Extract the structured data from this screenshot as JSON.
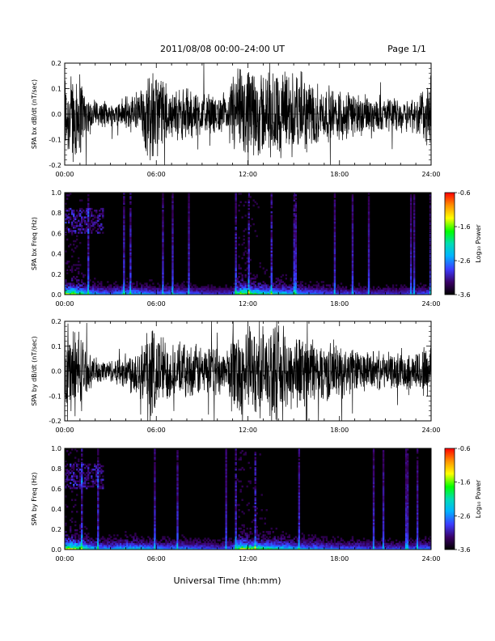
{
  "header": {
    "title": "2011/08/08   00:00–24:00 UT",
    "page": "Page 1/1"
  },
  "chart_data": [
    {
      "type": "line",
      "ylabel": "SPA bx dB/dt (nT/sec)",
      "x_ticks": [
        "00:00",
        "06:00",
        "12:00",
        "18:00",
        "24:00"
      ],
      "xlim_hours": [
        0,
        24
      ],
      "ylim": [
        -0.2,
        0.2
      ],
      "y_ticks": [
        "-0.2",
        "-0.1",
        "0.0",
        "0.1",
        "0.2"
      ],
      "envelope": {
        "hours": [
          0,
          0.5,
          1,
          1.5,
          2,
          3,
          4,
          5,
          5.5,
          6,
          7,
          8,
          9,
          10,
          10.7,
          11,
          11.5,
          12,
          13,
          14,
          15,
          16,
          17,
          18,
          19,
          20,
          21,
          22,
          23,
          24
        ],
        "amplitude": [
          0.2,
          0.2,
          0.2,
          0.08,
          0.06,
          0.05,
          0.08,
          0.12,
          0.2,
          0.2,
          0.1,
          0.12,
          0.1,
          0.08,
          0.08,
          0.2,
          0.2,
          0.2,
          0.2,
          0.2,
          0.2,
          0.16,
          0.12,
          0.12,
          0.1,
          0.08,
          0.07,
          0.07,
          0.08,
          0.18
        ]
      },
      "color": "#000000"
    },
    {
      "type": "heatmap",
      "ylabel": "SPA bx Freq (Hz)",
      "x_ticks": [
        "00:00",
        "06:00",
        "12:00",
        "18:00",
        "24:00"
      ],
      "xlim_hours": [
        0,
        24
      ],
      "ylim": [
        0.0,
        1.0
      ],
      "y_ticks": [
        "0.0",
        "0.2",
        "0.4",
        "0.6",
        "0.8",
        "1.0"
      ],
      "colorbar": {
        "label": "Log₁₀ Power",
        "ticks": [
          "-0.6",
          "-1.6",
          "-2.6",
          "-3.6"
        ],
        "range": [
          -3.6,
          -0.6
        ]
      },
      "activity": {
        "hours": [
          0,
          0.5,
          1,
          1.5,
          2,
          3,
          4,
          5,
          6,
          7,
          8,
          9,
          10,
          11,
          11.5,
          12,
          13,
          14,
          15,
          16,
          17,
          18,
          19,
          20,
          21,
          22,
          23,
          24
        ],
        "level": [
          1.0,
          0.9,
          0.8,
          0.6,
          0.5,
          0.4,
          0.55,
          0.5,
          0.4,
          0.45,
          0.4,
          0.35,
          0.3,
          0.35,
          0.95,
          0.85,
          0.7,
          0.65,
          0.55,
          0.45,
          0.4,
          0.35,
          0.35,
          0.3,
          0.3,
          0.3,
          0.35,
          0.4
        ]
      }
    },
    {
      "type": "line",
      "ylabel": "SPA by dB/dt (nT/sec)",
      "x_ticks": [
        "00:00",
        "06:00",
        "12:00",
        "18:00",
        "24:00"
      ],
      "xlim_hours": [
        0,
        24
      ],
      "ylim": [
        -0.2,
        0.2
      ],
      "y_ticks": [
        "-0.2",
        "-0.1",
        "0.0",
        "0.1",
        "0.2"
      ],
      "envelope": {
        "hours": [
          0,
          0.5,
          1,
          1.5,
          2,
          3,
          4,
          5,
          5.5,
          6,
          7,
          8,
          9,
          10,
          10.7,
          11,
          11.5,
          12,
          13,
          14,
          15,
          16,
          17,
          18,
          19,
          20,
          21,
          22,
          23,
          24
        ],
        "amplitude": [
          0.2,
          0.2,
          0.2,
          0.08,
          0.06,
          0.05,
          0.08,
          0.14,
          0.2,
          0.2,
          0.12,
          0.12,
          0.12,
          0.1,
          0.1,
          0.2,
          0.2,
          0.2,
          0.2,
          0.2,
          0.18,
          0.16,
          0.13,
          0.12,
          0.1,
          0.09,
          0.08,
          0.08,
          0.09,
          0.15
        ]
      },
      "color": "#000000"
    },
    {
      "type": "heatmap",
      "ylabel": "SPA by Freq (Hz)",
      "x_ticks": [
        "00:00",
        "06:00",
        "12:00",
        "18:00",
        "24:00"
      ],
      "xlim_hours": [
        0,
        24
      ],
      "ylim": [
        0.0,
        1.0
      ],
      "y_ticks": [
        "0.0",
        "0.2",
        "0.4",
        "0.6",
        "0.8",
        "1.0"
      ],
      "colorbar": {
        "label": "Log₁₀ Power",
        "ticks": [
          "-0.6",
          "-1.6",
          "-2.6",
          "-3.6"
        ],
        "range": [
          -3.6,
          -0.6
        ]
      },
      "activity": {
        "hours": [
          0,
          0.5,
          1,
          1.5,
          2,
          3,
          4,
          5,
          6,
          7,
          8,
          9,
          10,
          11,
          11.5,
          12,
          13,
          14,
          15,
          16,
          17,
          18,
          19,
          20,
          21,
          22,
          23,
          24
        ],
        "level": [
          1.0,
          0.95,
          0.85,
          0.65,
          0.55,
          0.45,
          0.6,
          0.55,
          0.45,
          0.45,
          0.45,
          0.4,
          0.35,
          0.4,
          1.0,
          0.9,
          0.75,
          0.65,
          0.55,
          0.5,
          0.45,
          0.4,
          0.4,
          0.35,
          0.35,
          0.35,
          0.4,
          0.45
        ]
      }
    }
  ],
  "xlabel": "Universal Time (hh:mm)"
}
